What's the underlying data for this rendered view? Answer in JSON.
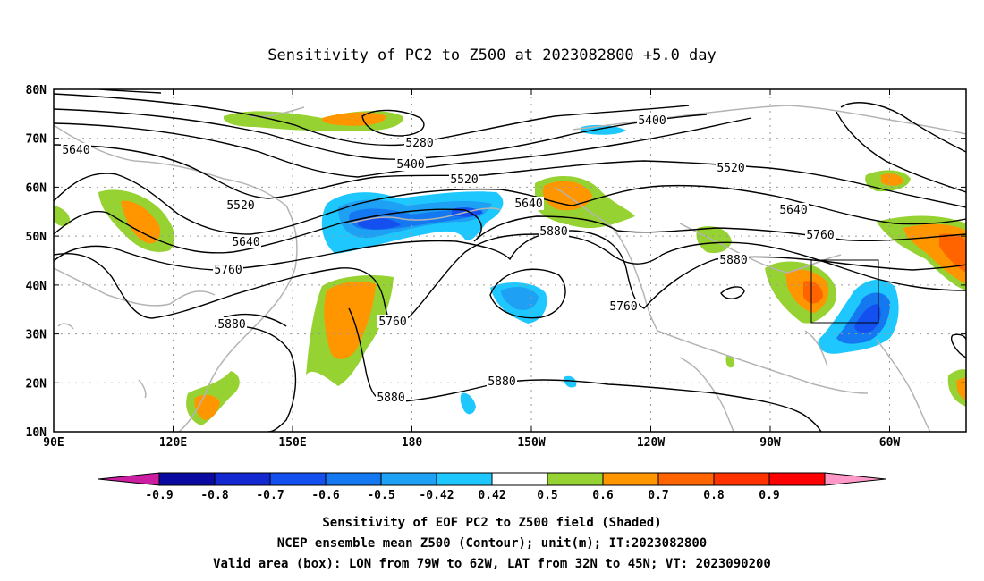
{
  "title": "Sensitivity of PC2 to Z500 at 2023082800 +5.0 day",
  "lat_labels": [
    "80N",
    "70N",
    "60N",
    "50N",
    "40N",
    "30N",
    "20N",
    "10N"
  ],
  "lon_labels": [
    "90E",
    "120E",
    "150E",
    "180",
    "150W",
    "120W",
    "90W",
    "60W"
  ],
  "contour_labels": [
    {
      "text": "5280"
    },
    {
      "text": "5400"
    },
    {
      "text": "5400"
    },
    {
      "text": "5520"
    },
    {
      "text": "5520"
    },
    {
      "text": "5520"
    },
    {
      "text": "5640"
    },
    {
      "text": "5640"
    },
    {
      "text": "5640"
    },
    {
      "text": "5640"
    },
    {
      "text": "5760"
    },
    {
      "text": "5760"
    },
    {
      "text": "5760"
    },
    {
      "text": "5760"
    },
    {
      "text": "5880"
    },
    {
      "text": "5880"
    },
    {
      "text": "5880"
    },
    {
      "text": "5880"
    },
    {
      "text": "5880"
    }
  ],
  "colorbar": {
    "labels": [
      "-0.9",
      "-0.8",
      "-0.7",
      "-0.6",
      "-0.5",
      "-0.42",
      "0.42",
      "0.5",
      "0.6",
      "0.7",
      "0.8",
      "0.9"
    ],
    "colors": [
      "#0a0aa0",
      "#1428d2",
      "#1450f0",
      "#1478f0",
      "#1ea0f5",
      "#1ec8ff",
      "#ffffff",
      "#96d232",
      "#ff9600",
      "#ff6400",
      "#ff3200",
      "#ff0000"
    ],
    "low_end_color": "#cc1ea0",
    "high_end_color": "#ff9ac8"
  },
  "caption": [
    "Sensitivity of EOF PC2 to Z500 field (Shaded)",
    "NCEP ensemble mean Z500 (Contour); unit(m); IT:2023082800",
    "Valid area (box): LON from 79W to 62W, LAT from 32N to 45N; VT: 2023090200"
  ]
}
